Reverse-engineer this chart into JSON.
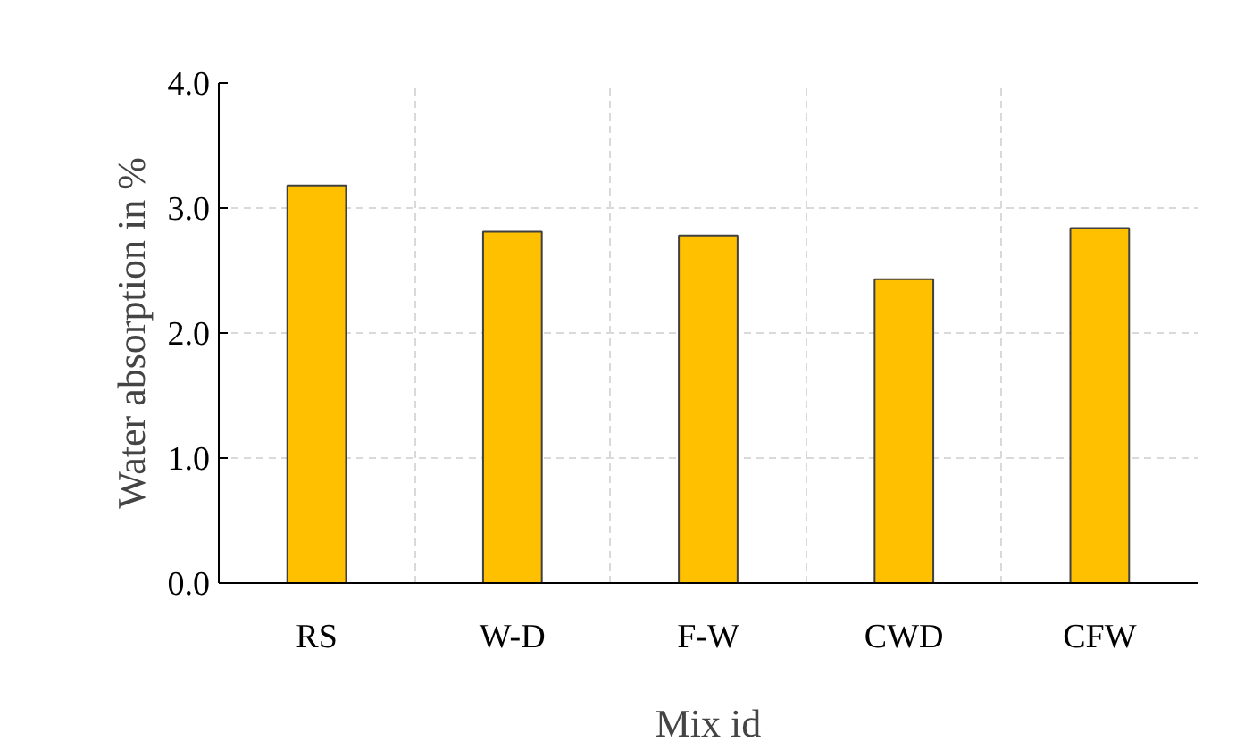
{
  "chart_data": {
    "type": "bar",
    "xlabel": "Mix id",
    "ylabel": "Water absorption in %",
    "categories": [
      "RS",
      "W-D",
      "F-W",
      "CWD",
      "CFW"
    ],
    "values": [
      3.18,
      2.81,
      2.78,
      2.43,
      2.84
    ],
    "color": "#ffc000",
    "ylim": [
      0,
      4
    ],
    "yticks": [
      {
        "value": 0,
        "label": "0.0"
      },
      {
        "value": 1,
        "label": "1.0"
      },
      {
        "value": 2,
        "label": "2.0"
      },
      {
        "value": 3,
        "label": "3.0"
      },
      {
        "value": 4,
        "label": "4.0"
      }
    ],
    "grid": true
  }
}
